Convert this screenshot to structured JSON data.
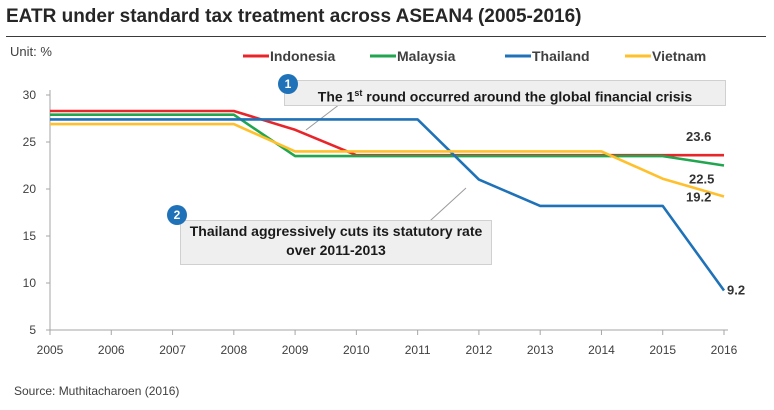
{
  "title": "EATR under standard tax treatment across ASEAN4 (2005-2016)",
  "unit": "Unit: %",
  "source": "Source: Muthitacharoen (2016)",
  "annotations": [
    {
      "number": "1",
      "text_before": "The 1",
      "text_sup": "st",
      "text_after": " round occurred around the global financial crisis"
    },
    {
      "number": "2",
      "text": "Thailand aggressively cuts its statutory rate over 2011-2013"
    }
  ],
  "chart_data": {
    "type": "line",
    "title": "EATR under standard tax treatment across ASEAN4 (2005-2016)",
    "xlabel": "",
    "ylabel": "Unit: %",
    "x": [
      2005,
      2006,
      2007,
      2008,
      2009,
      2010,
      2011,
      2012,
      2013,
      2014,
      2015,
      2016
    ],
    "x_tick_labels": [
      "2005",
      "2006",
      "2007",
      "2008",
      "2009",
      "2010",
      "2011",
      "2012",
      "2013",
      "2014",
      "2015",
      "2016"
    ],
    "ylim": [
      5,
      30
    ],
    "y_ticks": [
      5,
      10,
      15,
      20,
      25,
      30
    ],
    "y_tick_labels": [
      "5",
      "10",
      "15",
      "20",
      "25",
      "30"
    ],
    "grid": false,
    "legend": "top",
    "series": [
      {
        "name": "Indonesia",
        "color": "#e8252a",
        "values": [
          28.3,
          28.3,
          28.3,
          28.3,
          26.3,
          23.6,
          23.6,
          23.6,
          23.6,
          23.6,
          23.6,
          23.6
        ],
        "end_label": "23.6"
      },
      {
        "name": "Malaysia",
        "color": "#21a64f",
        "values": [
          27.9,
          27.9,
          27.9,
          27.9,
          23.5,
          23.5,
          23.5,
          23.5,
          23.5,
          23.5,
          23.5,
          22.5
        ],
        "end_label": "22.5"
      },
      {
        "name": "Thailand",
        "color": "#1f72b8",
        "values": [
          27.4,
          27.4,
          27.4,
          27.4,
          27.4,
          27.4,
          27.4,
          21.0,
          18.2,
          18.2,
          18.2,
          9.2
        ],
        "end_label": "9.2"
      },
      {
        "name": "Vietnam",
        "color": "#ffc02b",
        "values": [
          26.9,
          26.9,
          26.9,
          26.9,
          24.0,
          24.0,
          24.0,
          24.0,
          24.0,
          24.0,
          21.1,
          19.2
        ],
        "end_label": "19.2"
      }
    ]
  }
}
